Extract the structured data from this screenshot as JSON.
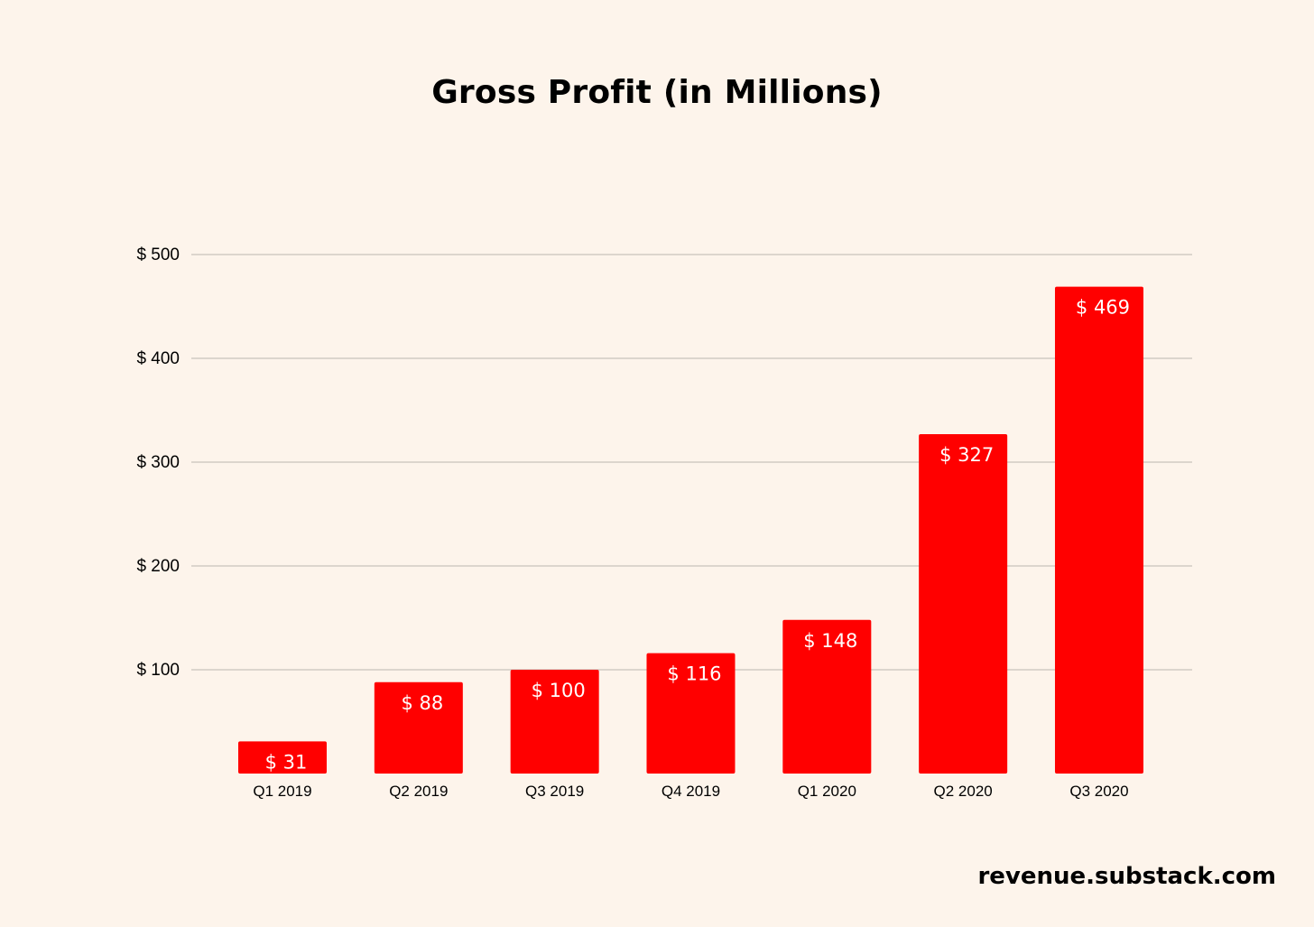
{
  "chart_data": {
    "type": "bar",
    "title": "Gross Profit (in Millions)",
    "xlabel": "",
    "ylabel": "",
    "categories": [
      "Q1 2019",
      "Q2 2019",
      "Q3 2019",
      "Q4 2019",
      "Q1 2020",
      "Q2 2020",
      "Q3 2020"
    ],
    "values": [
      31,
      88,
      100,
      116,
      148,
      327,
      469
    ],
    "data_labels": [
      "$ 31",
      "$ 88",
      "$ 100",
      "$ 116",
      "$ 148",
      "$ 327",
      "$ 469"
    ],
    "ylim": [
      0,
      500
    ],
    "yticks": [
      100,
      200,
      300,
      400,
      500
    ],
    "ytick_labels": [
      "$ 100",
      "$ 200",
      "$ 300",
      "$ 400",
      "$ 500"
    ],
    "grid": true,
    "legend": "none",
    "bar_color": "#ff0000",
    "label_color": "#ffffff",
    "grid_color": "#c8c2bb",
    "background_color": "#fdf4eb"
  },
  "footer": {
    "credit": "revenue.substack.com"
  }
}
